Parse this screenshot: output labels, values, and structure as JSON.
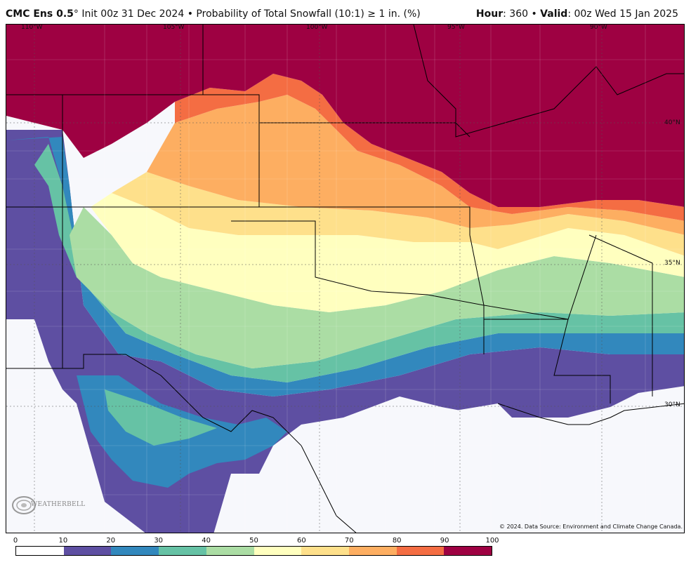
{
  "header": {
    "model": "CMC Ens 0.5",
    "degree": "°",
    "init": " Init 00z 31 Dec 2024",
    "sep": " • ",
    "product": "Probability of Total Snowfall (10:1) ≥ 1 in. (%)",
    "hour_label": "Hour",
    "hour_value": ": 360 • ",
    "valid_label": "Valid",
    "valid_value": ": 00z Wed 15 Jan 2025"
  },
  "map": {
    "lon_labels": [
      "110°W",
      "105°W",
      "100°W",
      "95°W",
      "90°W"
    ],
    "lat_labels": [
      "40°N",
      "35°N",
      "30°N"
    ],
    "logo_text": "WEATHERBELL",
    "credit": "© 2024. Data Source: Environment and Climate Change Canada."
  },
  "colorbar": {
    "ticks": [
      "0",
      "10",
      "20",
      "30",
      "40",
      "50",
      "60",
      "70",
      "80",
      "90",
      "100"
    ],
    "colors": [
      "#ffffff",
      "#5e4fa2",
      "#3288bd",
      "#66c2a5",
      "#abdda4",
      "#ffffbf",
      "#fee08b",
      "#fdae61",
      "#f46d43",
      "#9e0142"
    ]
  }
}
